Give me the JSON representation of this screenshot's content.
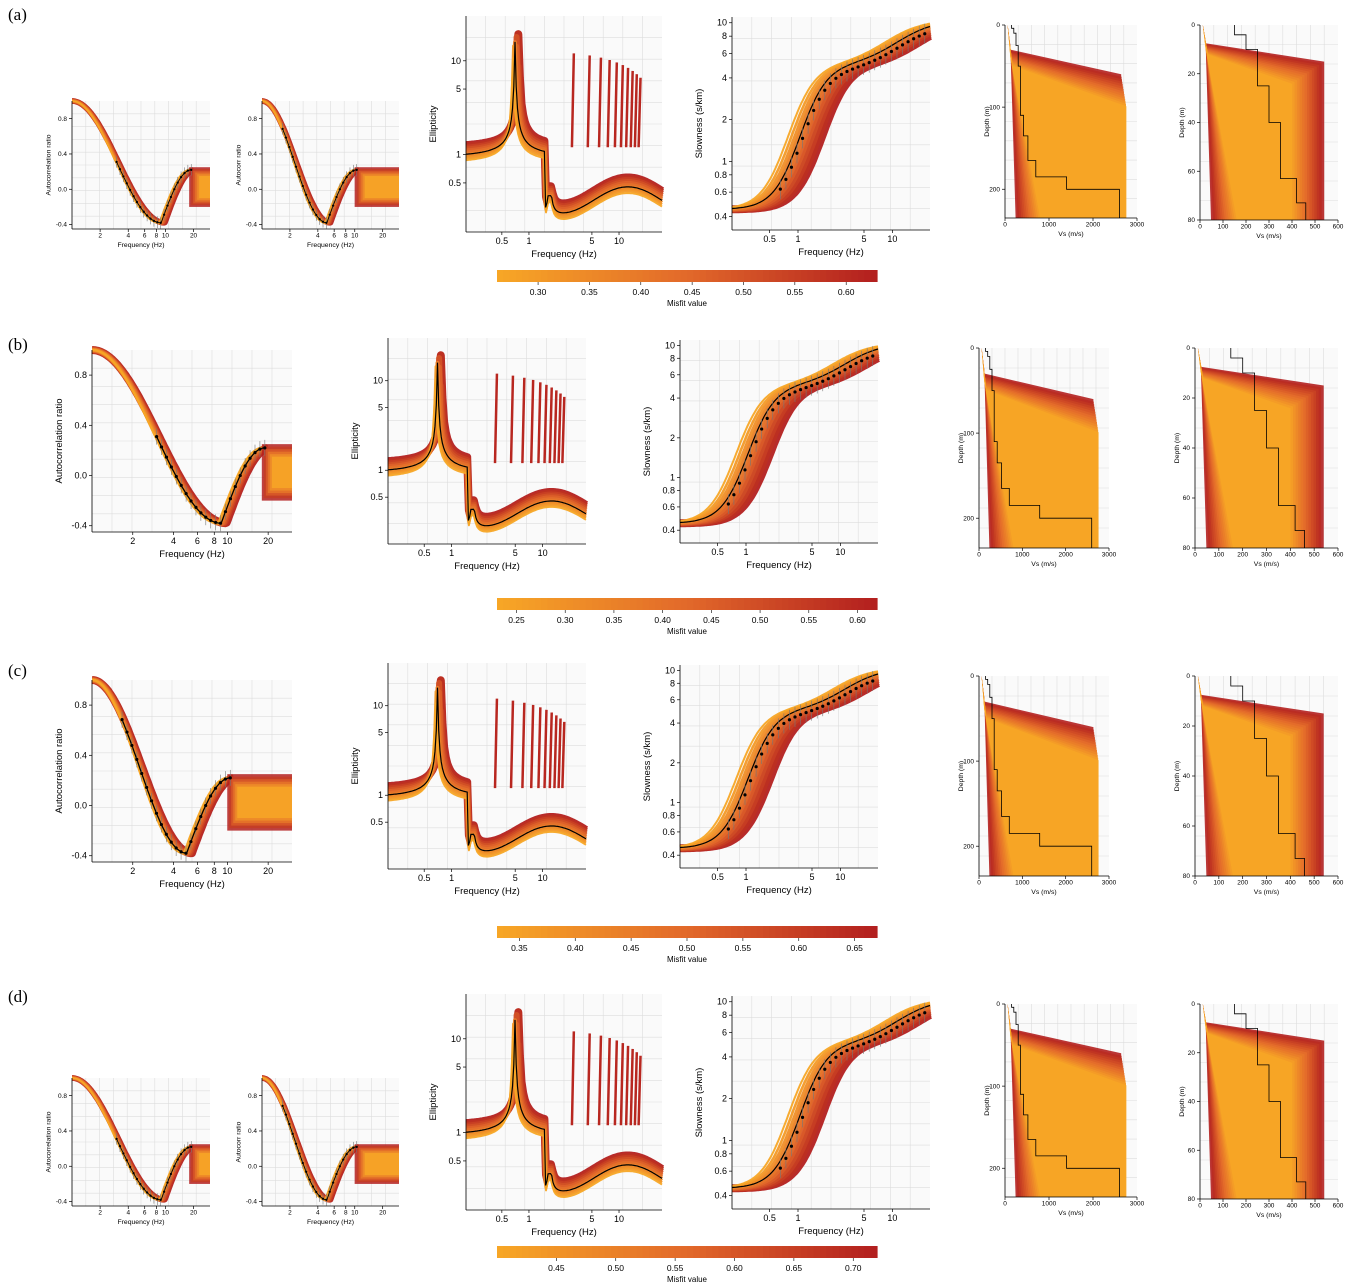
{
  "colors": {
    "low": "#f7a626",
    "mid": "#e2692a",
    "high": "#b3201f",
    "best_fit": "#000000",
    "grid": "#dddddd"
  },
  "rows": [
    {
      "label": "(a)",
      "colorbar": {
        "title": "Misfit value",
        "ticks": [
          "0.30",
          "0.35",
          "0.40",
          "0.45",
          "0.50",
          "0.55",
          "0.60"
        ],
        "range": [
          0.26,
          0.63
        ]
      },
      "panels": [
        {
          "kind": "autocorr",
          "xlabel": "Frequency (Hz)",
          "ylabel": "Autocorrelation ratio",
          "xticks": [
            "2",
            "4",
            "6",
            "8",
            "10",
            "20"
          ],
          "yticks": [
            "0.8",
            "0.4",
            "0.0",
            "-0.4"
          ],
          "xrange": [
            1,
            30
          ],
          "yrange": [
            -0.45,
            1.0
          ],
          "min_freq": 9
        },
        {
          "kind": "autocorr",
          "xlabel": "Frequency (Hz)",
          "ylabel": "Autocorr ratio",
          "xticks": [
            "2",
            "4",
            "6",
            "8",
            "10",
            "20"
          ],
          "yticks": [
            "0.8",
            "0.4",
            "0.0",
            "-0.4"
          ],
          "xrange": [
            1,
            30
          ],
          "yrange": [
            -0.45,
            1.0
          ],
          "min_freq": 5
        },
        {
          "kind": "ellipticity",
          "xlabel": "Frequency (Hz)",
          "ylabel": "Ellipticity",
          "xticks": [
            "0.5",
            "1",
            "5",
            "10"
          ],
          "yticks": [
            "10",
            "5",
            "1",
            "0.5"
          ],
          "xrange": [
            0.2,
            30
          ],
          "yrange": [
            0.15,
            30
          ],
          "peak_freq": 0.7,
          "trough_freq": 1.7
        },
        {
          "kind": "slowness",
          "xlabel": "Frequency (Hz)",
          "ylabel": "Slowness (s/km)",
          "xticks": [
            "0.5",
            "1",
            "5",
            "10"
          ],
          "yticks": [
            "10",
            "8",
            "6",
            "4",
            "2",
            "1",
            "0.8",
            "0.6",
            "0.4"
          ],
          "xrange": [
            0.2,
            25
          ],
          "yrange": [
            0.32,
            11
          ]
        },
        {
          "kind": "vsdeep",
          "xlabel": "Vs (m/s)",
          "ylabel": "Depth (m)",
          "xticks": [
            "0",
            "1000",
            "2000",
            "3000"
          ],
          "yticks": [
            "0",
            "100",
            "200"
          ],
          "xrange": [
            0,
            3000
          ],
          "yrange": [
            0,
            235
          ],
          "best_fit": [
            [
              0,
              150
            ],
            [
              4,
              200
            ],
            [
              10,
              250
            ],
            [
              25,
              300
            ],
            [
              50,
              350
            ],
            [
              110,
              420
            ],
            [
              135,
              520
            ],
            [
              165,
              700
            ],
            [
              185,
              1400
            ],
            [
              200,
              2600
            ]
          ]
        },
        {
          "kind": "vsshallow",
          "xlabel": "Vs (m/s)",
          "ylabel": "Depth (m)",
          "xticks": [
            "0",
            "100",
            "200",
            "300",
            "400",
            "500",
            "600"
          ],
          "yticks": [
            "0",
            "20",
            "40",
            "60",
            "80"
          ],
          "xrange": [
            0,
            600
          ],
          "yrange": [
            0,
            80
          ],
          "best_fit": [
            [
              0,
              150
            ],
            [
              4,
              200
            ],
            [
              10,
              250
            ],
            [
              25,
              300
            ],
            [
              40,
              350
            ],
            [
              63,
              420
            ],
            [
              73,
              460
            ],
            [
              80,
              460
            ]
          ]
        }
      ]
    },
    {
      "label": "(b)",
      "colorbar": {
        "title": "Misfit value",
        "ticks": [
          "0.25",
          "0.30",
          "0.35",
          "0.40",
          "0.45",
          "0.50",
          "0.55",
          "0.60"
        ],
        "range": [
          0.23,
          0.62
        ]
      },
      "panels": [
        {
          "kind": "autocorr",
          "xlabel": "Frequency (Hz)",
          "ylabel": "Autocorrelation ratio",
          "xticks": [
            "2",
            "4",
            "6",
            "8",
            "10",
            "20"
          ],
          "yticks": [
            "0.8",
            "0.4",
            "0.0",
            "-0.4"
          ],
          "xrange": [
            1,
            30
          ],
          "yrange": [
            -0.45,
            1.0
          ],
          "min_freq": 9
        },
        {
          "kind": "ellipticity",
          "xlabel": "Frequency (Hz)",
          "ylabel": "Ellipticity",
          "xticks": [
            "0.5",
            "1",
            "5",
            "10"
          ],
          "yticks": [
            "10",
            "5",
            "1",
            "0.5"
          ],
          "xrange": [
            0.2,
            30
          ],
          "yrange": [
            0.15,
            30
          ],
          "peak_freq": 0.7,
          "trough_freq": 1.7
        },
        {
          "kind": "slowness",
          "xlabel": "Frequency (Hz)",
          "ylabel": "Slowness (s/km)",
          "xticks": [
            "0.5",
            "1",
            "5",
            "10"
          ],
          "yticks": [
            "10",
            "8",
            "6",
            "4",
            "2",
            "1",
            "0.8",
            "0.6",
            "0.4"
          ],
          "xrange": [
            0.2,
            25
          ],
          "yrange": [
            0.32,
            11
          ]
        },
        {
          "kind": "vsdeep",
          "xlabel": "Vs (m/s)",
          "ylabel": "Depth (m)",
          "xticks": [
            "0",
            "1000",
            "2000",
            "3000"
          ],
          "yticks": [
            "0",
            "100",
            "200"
          ],
          "xrange": [
            0,
            3000
          ],
          "yrange": [
            0,
            235
          ],
          "best_fit": [
            [
              0,
              150
            ],
            [
              4,
              200
            ],
            [
              10,
              250
            ],
            [
              25,
              300
            ],
            [
              50,
              350
            ],
            [
              110,
              420
            ],
            [
              135,
              520
            ],
            [
              165,
              700
            ],
            [
              185,
              1400
            ],
            [
              200,
              2600
            ]
          ]
        },
        {
          "kind": "vsshallow",
          "xlabel": "Vs (m/s)",
          "ylabel": "Depth (m)",
          "xticks": [
            "0",
            "100",
            "200",
            "300",
            "400",
            "500",
            "600"
          ],
          "yticks": [
            "0",
            "20",
            "40",
            "60",
            "80"
          ],
          "xrange": [
            0,
            600
          ],
          "yrange": [
            0,
            80
          ],
          "best_fit": [
            [
              0,
              150
            ],
            [
              4,
              200
            ],
            [
              10,
              250
            ],
            [
              25,
              300
            ],
            [
              40,
              350
            ],
            [
              63,
              420
            ],
            [
              73,
              460
            ],
            [
              80,
              460
            ]
          ]
        }
      ]
    },
    {
      "label": "(c)",
      "colorbar": {
        "title": "Misfit value",
        "ticks": [
          "0.35",
          "0.40",
          "0.45",
          "0.50",
          "0.55",
          "0.60",
          "0.65"
        ],
        "range": [
          0.33,
          0.67
        ]
      },
      "panels": [
        {
          "kind": "autocorr",
          "xlabel": "Frequency (Hz)",
          "ylabel": "Autocorrelation ratio",
          "xticks": [
            "2",
            "4",
            "6",
            "8",
            "10",
            "20"
          ],
          "yticks": [
            "0.8",
            "0.4",
            "0.0",
            "-0.4"
          ],
          "xrange": [
            1,
            30
          ],
          "yrange": [
            -0.45,
            1.0
          ],
          "min_freq": 5
        },
        {
          "kind": "ellipticity",
          "xlabel": "Frequency (Hz)",
          "ylabel": "Ellipticity",
          "xticks": [
            "0.5",
            "1",
            "5",
            "10"
          ],
          "yticks": [
            "10",
            "5",
            "1",
            "0.5"
          ],
          "xrange": [
            0.2,
            30
          ],
          "yrange": [
            0.15,
            30
          ],
          "peak_freq": 0.7,
          "trough_freq": 1.7
        },
        {
          "kind": "slowness",
          "xlabel": "Frequency (Hz)",
          "ylabel": "Slowness (s/km)",
          "xticks": [
            "0.5",
            "1",
            "5",
            "10"
          ],
          "yticks": [
            "10",
            "8",
            "6",
            "4",
            "2",
            "1",
            "0.8",
            "0.6",
            "0.4"
          ],
          "xrange": [
            0.2,
            25
          ],
          "yrange": [
            0.32,
            11
          ]
        },
        {
          "kind": "vsdeep",
          "xlabel": "Vs (m/s)",
          "ylabel": "Depth (m)",
          "xticks": [
            "0",
            "1000",
            "2000",
            "3000"
          ],
          "yticks": [
            "0",
            "100",
            "200"
          ],
          "xrange": [
            0,
            3000
          ],
          "yrange": [
            0,
            235
          ],
          "best_fit": [
            [
              0,
              150
            ],
            [
              4,
              200
            ],
            [
              10,
              250
            ],
            [
              25,
              300
            ],
            [
              50,
              350
            ],
            [
              110,
              420
            ],
            [
              135,
              520
            ],
            [
              165,
              700
            ],
            [
              185,
              1400
            ],
            [
              200,
              2600
            ]
          ]
        },
        {
          "kind": "vsshallow",
          "xlabel": "Vs (m/s)",
          "ylabel": "Depth (m)",
          "xticks": [
            "0",
            "100",
            "200",
            "300",
            "400",
            "500",
            "600"
          ],
          "yticks": [
            "0",
            "20",
            "40",
            "60",
            "80"
          ],
          "xrange": [
            0,
            600
          ],
          "yrange": [
            0,
            80
          ],
          "best_fit": [
            [
              0,
              150
            ],
            [
              4,
              200
            ],
            [
              10,
              250
            ],
            [
              25,
              300
            ],
            [
              40,
              350
            ],
            [
              63,
              420
            ],
            [
              73,
              460
            ],
            [
              80,
              460
            ]
          ]
        }
      ]
    },
    {
      "label": "(d)",
      "colorbar": {
        "title": "Misfit value",
        "ticks": [
          "0.45",
          "0.50",
          "0.55",
          "0.60",
          "0.65",
          "0.70"
        ],
        "range": [
          0.4,
          0.72
        ]
      },
      "panels": [
        {
          "kind": "autocorr",
          "xlabel": "Frequency (Hz)",
          "ylabel": "Autocorrelation ratio",
          "xticks": [
            "2",
            "4",
            "6",
            "8",
            "10",
            "20"
          ],
          "yticks": [
            "0.8",
            "0.4",
            "0.0",
            "-0.4"
          ],
          "xrange": [
            1,
            30
          ],
          "yrange": [
            -0.45,
            1.0
          ],
          "min_freq": 9
        },
        {
          "kind": "autocorr",
          "xlabel": "Frequency (Hz)",
          "ylabel": "Autocorr ratio",
          "xticks": [
            "2",
            "4",
            "6",
            "8",
            "10",
            "20"
          ],
          "yticks": [
            "0.8",
            "0.4",
            "0.0",
            "-0.4"
          ],
          "xrange": [
            1,
            30
          ],
          "yrange": [
            -0.45,
            1.0
          ],
          "min_freq": 5
        },
        {
          "kind": "ellipticity",
          "xlabel": "Frequency (Hz)",
          "ylabel": "Ellipticity",
          "xticks": [
            "0.5",
            "1",
            "5",
            "10"
          ],
          "yticks": [
            "10",
            "5",
            "1",
            "0.5"
          ],
          "xrange": [
            0.2,
            30
          ],
          "yrange": [
            0.15,
            30
          ],
          "peak_freq": 0.7,
          "trough_freq": 1.7
        },
        {
          "kind": "slowness",
          "xlabel": "Frequency (Hz)",
          "ylabel": "Slowness (s/km)",
          "xticks": [
            "0.5",
            "1",
            "5",
            "10"
          ],
          "yticks": [
            "10",
            "8",
            "6",
            "4",
            "2",
            "1",
            "0.8",
            "0.6",
            "0.4"
          ],
          "xrange": [
            0.2,
            25
          ],
          "yrange": [
            0.32,
            11
          ]
        },
        {
          "kind": "vsdeep",
          "xlabel": "Vs (m/s)",
          "ylabel": "Depth (m)",
          "xticks": [
            "0",
            "1000",
            "2000",
            "3000"
          ],
          "yticks": [
            "0",
            "100",
            "200"
          ],
          "xrange": [
            0,
            3000
          ],
          "yrange": [
            0,
            235
          ],
          "best_fit": [
            [
              0,
              150
            ],
            [
              4,
              200
            ],
            [
              10,
              250
            ],
            [
              25,
              300
            ],
            [
              50,
              350
            ],
            [
              110,
              420
            ],
            [
              135,
              520
            ],
            [
              165,
              700
            ],
            [
              185,
              1400
            ],
            [
              200,
              2600
            ]
          ]
        },
        {
          "kind": "vsshallow",
          "xlabel": "Vs (m/s)",
          "ylabel": "Depth (m)",
          "xticks": [
            "0",
            "100",
            "200",
            "300",
            "400",
            "500",
            "600"
          ],
          "yticks": [
            "0",
            "20",
            "40",
            "60",
            "80"
          ],
          "xrange": [
            0,
            600
          ],
          "yrange": [
            0,
            80
          ],
          "best_fit": [
            [
              0,
              150
            ],
            [
              4,
              200
            ],
            [
              10,
              250
            ],
            [
              25,
              300
            ],
            [
              40,
              350
            ],
            [
              63,
              420
            ],
            [
              73,
              460
            ],
            [
              80,
              460
            ]
          ]
        }
      ]
    }
  ],
  "chart_data": [
    {
      "type": "line",
      "panel": "(a) autocorrelation",
      "xlabel": "Frequency (Hz)",
      "ylabel": "Autocorrelation ratio",
      "xlim": [
        1,
        30
      ],
      "ylim": [
        -0.45,
        1.0
      ],
      "x_scale": "log"
    },
    {
      "type": "line",
      "panel": "(a) ellipticity",
      "xlabel": "Frequency (Hz)",
      "ylabel": "Ellipticity",
      "x_scale": "log",
      "y_scale": "log"
    },
    {
      "type": "line",
      "panel": "(a) slowness",
      "xlabel": "Frequency (Hz)",
      "ylabel": "Slowness (s/km)",
      "x_scale": "log",
      "y_scale": "log"
    },
    {
      "type": "line",
      "panel": "Vs profiles",
      "xlabel": "Vs (m/s)",
      "ylabel": "Depth (m)",
      "x": [
        0,
        4,
        10,
        25,
        50,
        110,
        135,
        165,
        185,
        200
      ],
      "series": [
        {
          "values": [
            150,
            200,
            250,
            300,
            350,
            420,
            520,
            700,
            1400,
            2600
          ]
        }
      ]
    }
  ]
}
